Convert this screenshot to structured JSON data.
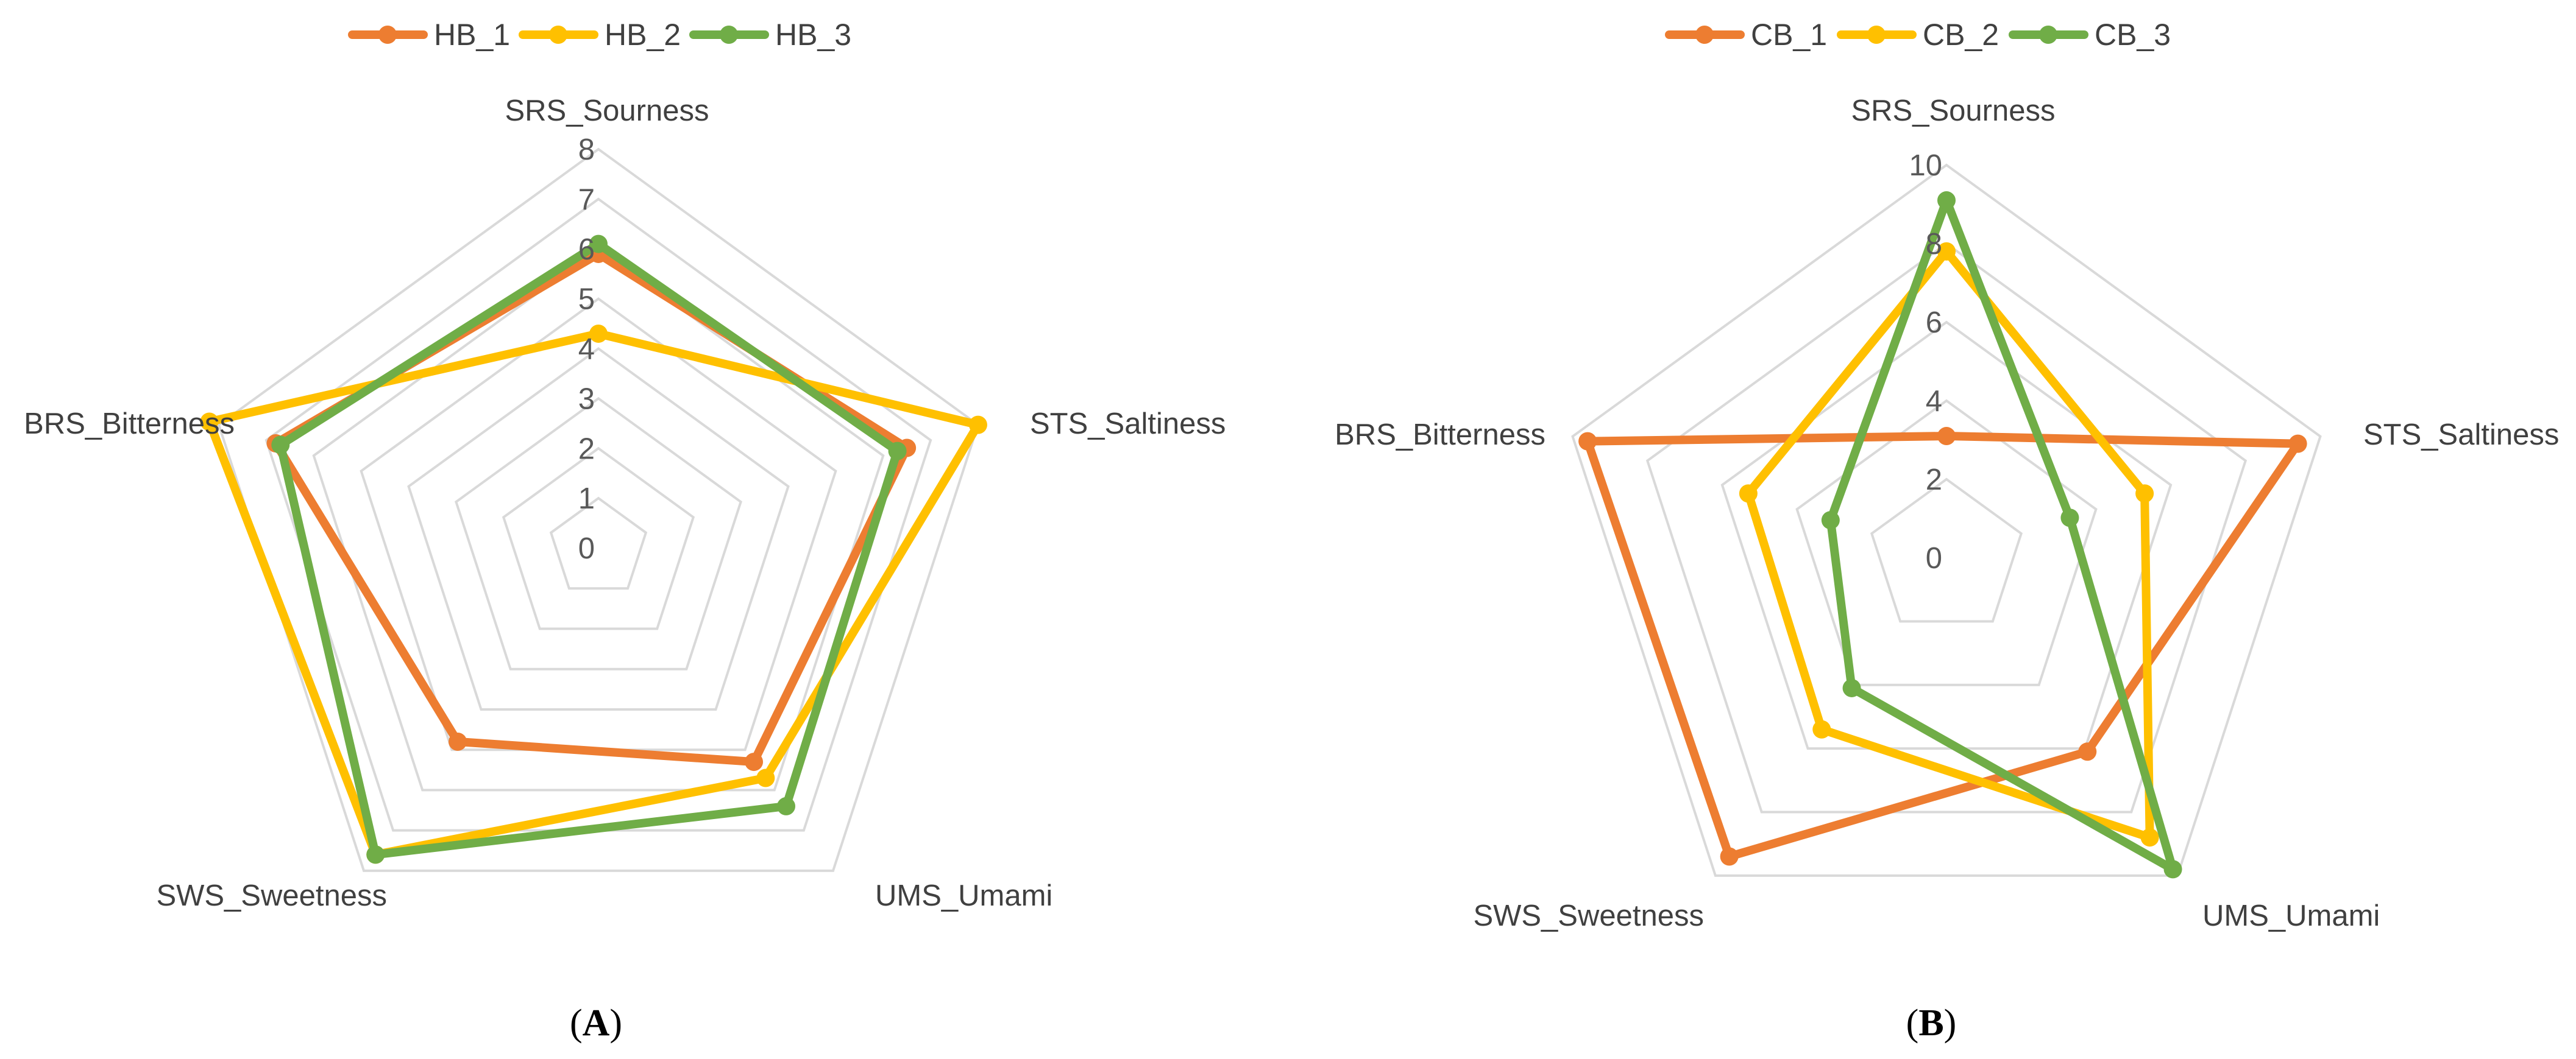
{
  "chart_data": [
    {
      "type": "radar",
      "panel_label": "A",
      "axes": [
        "SRS_Sourness",
        "STS_Saltiness",
        "UMS_Umami",
        "SWS_Sweetness",
        "BRS_Bitterness"
      ],
      "rlim": [
        0,
        8
      ],
      "ticks": [
        "0",
        "1",
        "2",
        "3",
        "4",
        "5",
        "6",
        "7",
        "8"
      ],
      "tick_values": [
        0,
        1,
        2,
        3,
        4,
        5,
        6,
        7,
        8
      ],
      "grid": true,
      "legend_position": "top",
      "series": [
        {
          "name": "HB_1",
          "color": "#ED7D31",
          "values": [
            5.9,
            6.5,
            5.3,
            4.8,
            6.8
          ]
        },
        {
          "name": "HB_2",
          "color": "#FFC000",
          "values": [
            4.3,
            8.0,
            5.7,
            7.6,
            8.2
          ]
        },
        {
          "name": "HB_3",
          "color": "#70AD47",
          "values": [
            6.1,
            6.3,
            6.4,
            7.6,
            6.7
          ]
        }
      ]
    },
    {
      "type": "radar",
      "panel_label": "B",
      "axes": [
        "SRS_Sourness",
        "STS_Saltiness",
        "UMS_Umami",
        "SWS_Sweetness",
        "BRS_Bitterness"
      ],
      "rlim": [
        0,
        10
      ],
      "ticks": [
        "0",
        "2",
        "4",
        "6",
        "8",
        "10"
      ],
      "tick_values": [
        0,
        2,
        4,
        6,
        8,
        10
      ],
      "grid": true,
      "legend_position": "top",
      "series": [
        {
          "name": "CB_1",
          "color": "#ED7D31",
          "values": [
            3.1,
            9.4,
            6.1,
            9.4,
            9.6
          ]
        },
        {
          "name": "CB_2",
          "color": "#FFC000",
          "values": [
            7.8,
            5.3,
            8.8,
            5.4,
            5.3
          ]
        },
        {
          "name": "CB_3",
          "color": "#70AD47",
          "values": [
            9.1,
            3.3,
            9.8,
            4.1,
            3.1
          ]
        }
      ]
    }
  ]
}
